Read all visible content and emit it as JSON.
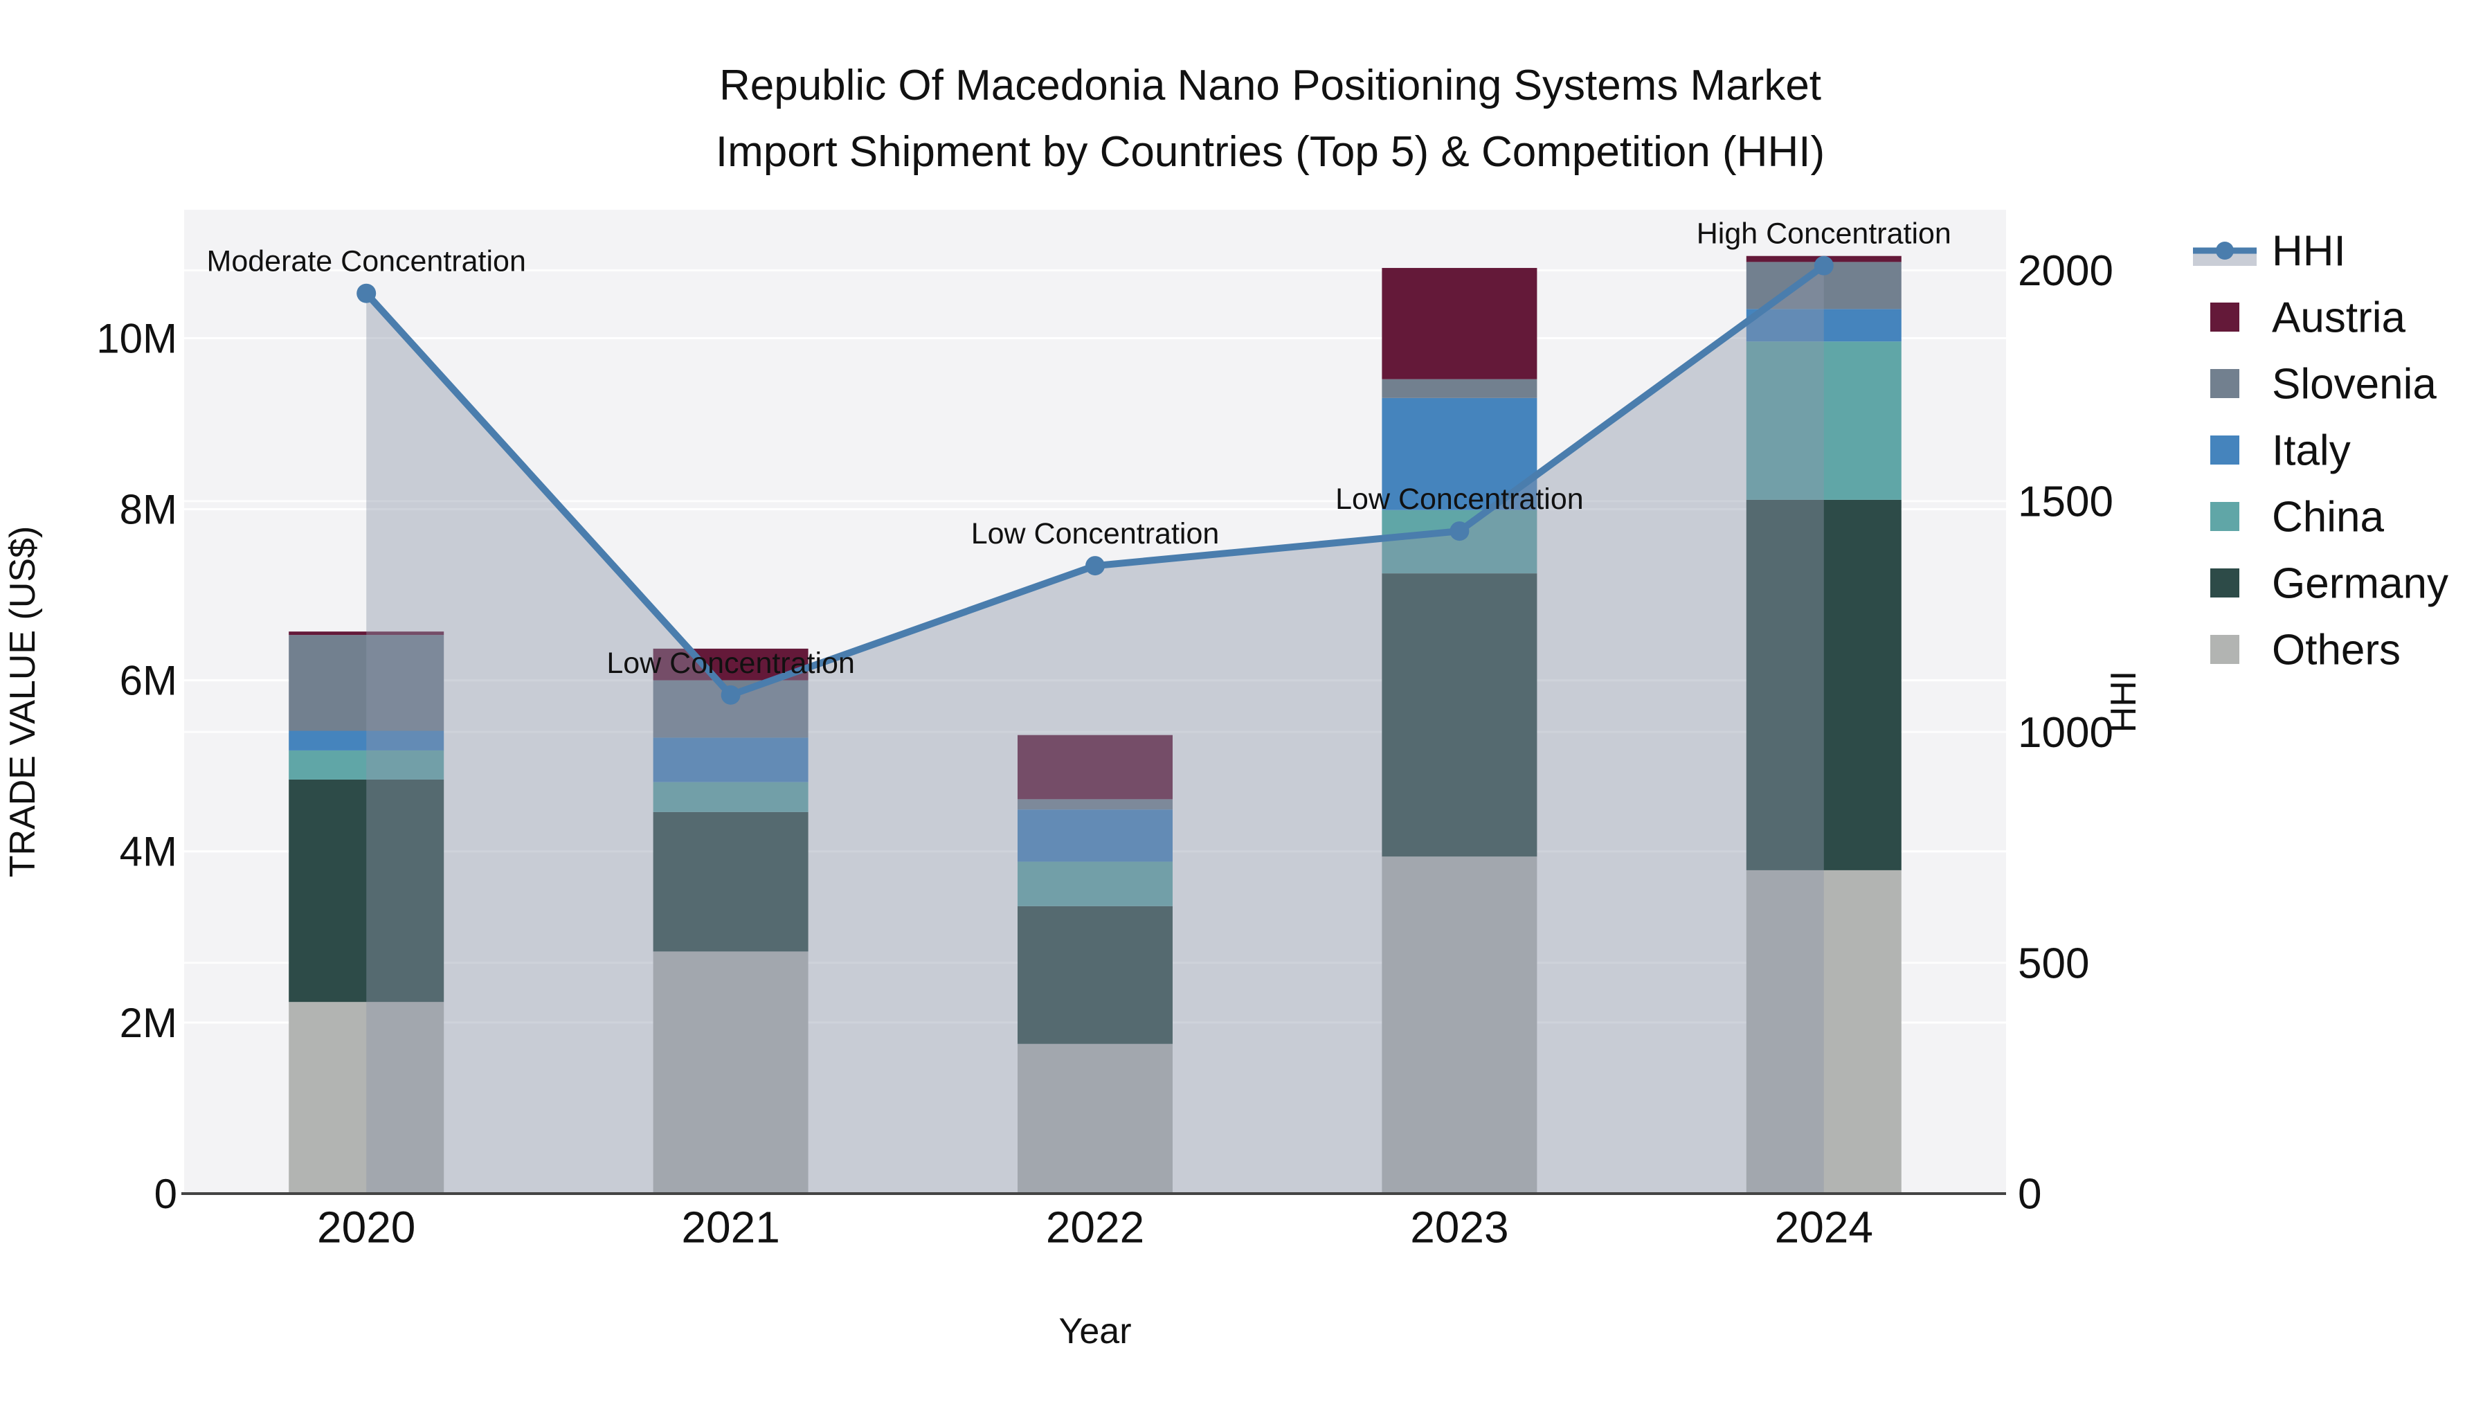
{
  "title": {
    "line1": "Republic Of Macedonia Nano Positioning Systems Market",
    "line2": "Import Shipment by Countries (Top 5) & Competition (HHI)"
  },
  "axes": {
    "left_title": "TRADE VALUE (US$)",
    "right_title": "HHI",
    "x_title": "Year",
    "left_ticks": [
      {
        "label": "0",
        "value": 0
      },
      {
        "label": "2M",
        "value": 2
      },
      {
        "label": "4M",
        "value": 4
      },
      {
        "label": "6M",
        "value": 6
      },
      {
        "label": "8M",
        "value": 8
      },
      {
        "label": "10M",
        "value": 10
      }
    ],
    "right_ticks": [
      {
        "label": "0",
        "value": 0
      },
      {
        "label": "500",
        "value": 500
      },
      {
        "label": "1000",
        "value": 1000
      },
      {
        "label": "1500",
        "value": 1500
      },
      {
        "label": "2000",
        "value": 2000
      }
    ]
  },
  "legend": {
    "items": [
      {
        "name": "HHI",
        "type": "line"
      },
      {
        "name": "Austria",
        "type": "square",
        "color": "#641939"
      },
      {
        "name": "Slovenia",
        "type": "square",
        "color": "#72808f"
      },
      {
        "name": "Italy",
        "type": "square",
        "color": "#4584bd"
      },
      {
        "name": "China",
        "type": "square",
        "color": "#60a6a7"
      },
      {
        "name": "Germany",
        "type": "square",
        "color": "#2d4b48"
      },
      {
        "name": "Others",
        "type": "square",
        "color": "#b2b4b2"
      }
    ]
  },
  "colors": {
    "plot_bg": "#f3f3f5",
    "gridline": "#ffffff",
    "axis_line": "#444444",
    "text": "#111111",
    "hhi_line": "#4a7dad",
    "hhi_area": "rgba(140,150,170,0.42)",
    "legend_band": "#c9cdd6"
  },
  "chart_data": {
    "type": "bar",
    "subtype": "stacked-bars-with-line",
    "categories": [
      "2020",
      "2021",
      "2022",
      "2023",
      "2024"
    ],
    "unit": "M US$",
    "series": [
      {
        "name": "Others",
        "color": "#b2b4b2",
        "values": [
          2.24,
          2.83,
          1.75,
          3.94,
          3.78
        ]
      },
      {
        "name": "Germany",
        "color": "#2d4b48",
        "values": [
          2.6,
          1.63,
          1.61,
          3.31,
          4.33
        ]
      },
      {
        "name": "China",
        "color": "#60a6a7",
        "values": [
          0.34,
          0.35,
          0.52,
          0.74,
          1.85
        ]
      },
      {
        "name": "Italy",
        "color": "#4584bd",
        "values": [
          0.23,
          0.52,
          0.61,
          1.31,
          0.38
        ]
      },
      {
        "name": "Slovenia",
        "color": "#72808f",
        "values": [
          1.12,
          0.67,
          0.12,
          0.22,
          0.55
        ]
      },
      {
        "name": "Austria",
        "color": "#641939",
        "values": [
          0.04,
          0.37,
          0.75,
          1.3,
          0.07
        ]
      }
    ],
    "line_series": {
      "name": "HHI",
      "axis": "right",
      "values": [
        1950,
        1080,
        1360,
        1435,
        2010
      ]
    },
    "annotations": [
      "Moderate Concentration",
      "Low Concentration",
      "Low Concentration",
      "Low Concentration",
      "High Concentration"
    ],
    "title": "Republic Of Macedonia Nano Positioning Systems Market Import Shipment by Countries (Top 5) & Competition (HHI)",
    "xlabel": "Year",
    "ylabel_left": "TRADE VALUE (US$)",
    "ylabel_right": "HHI",
    "ylim_left_M": [
      0,
      11.5
    ],
    "ylim_right": [
      0,
      2131
    ],
    "grid": true,
    "legend_position": "right"
  }
}
